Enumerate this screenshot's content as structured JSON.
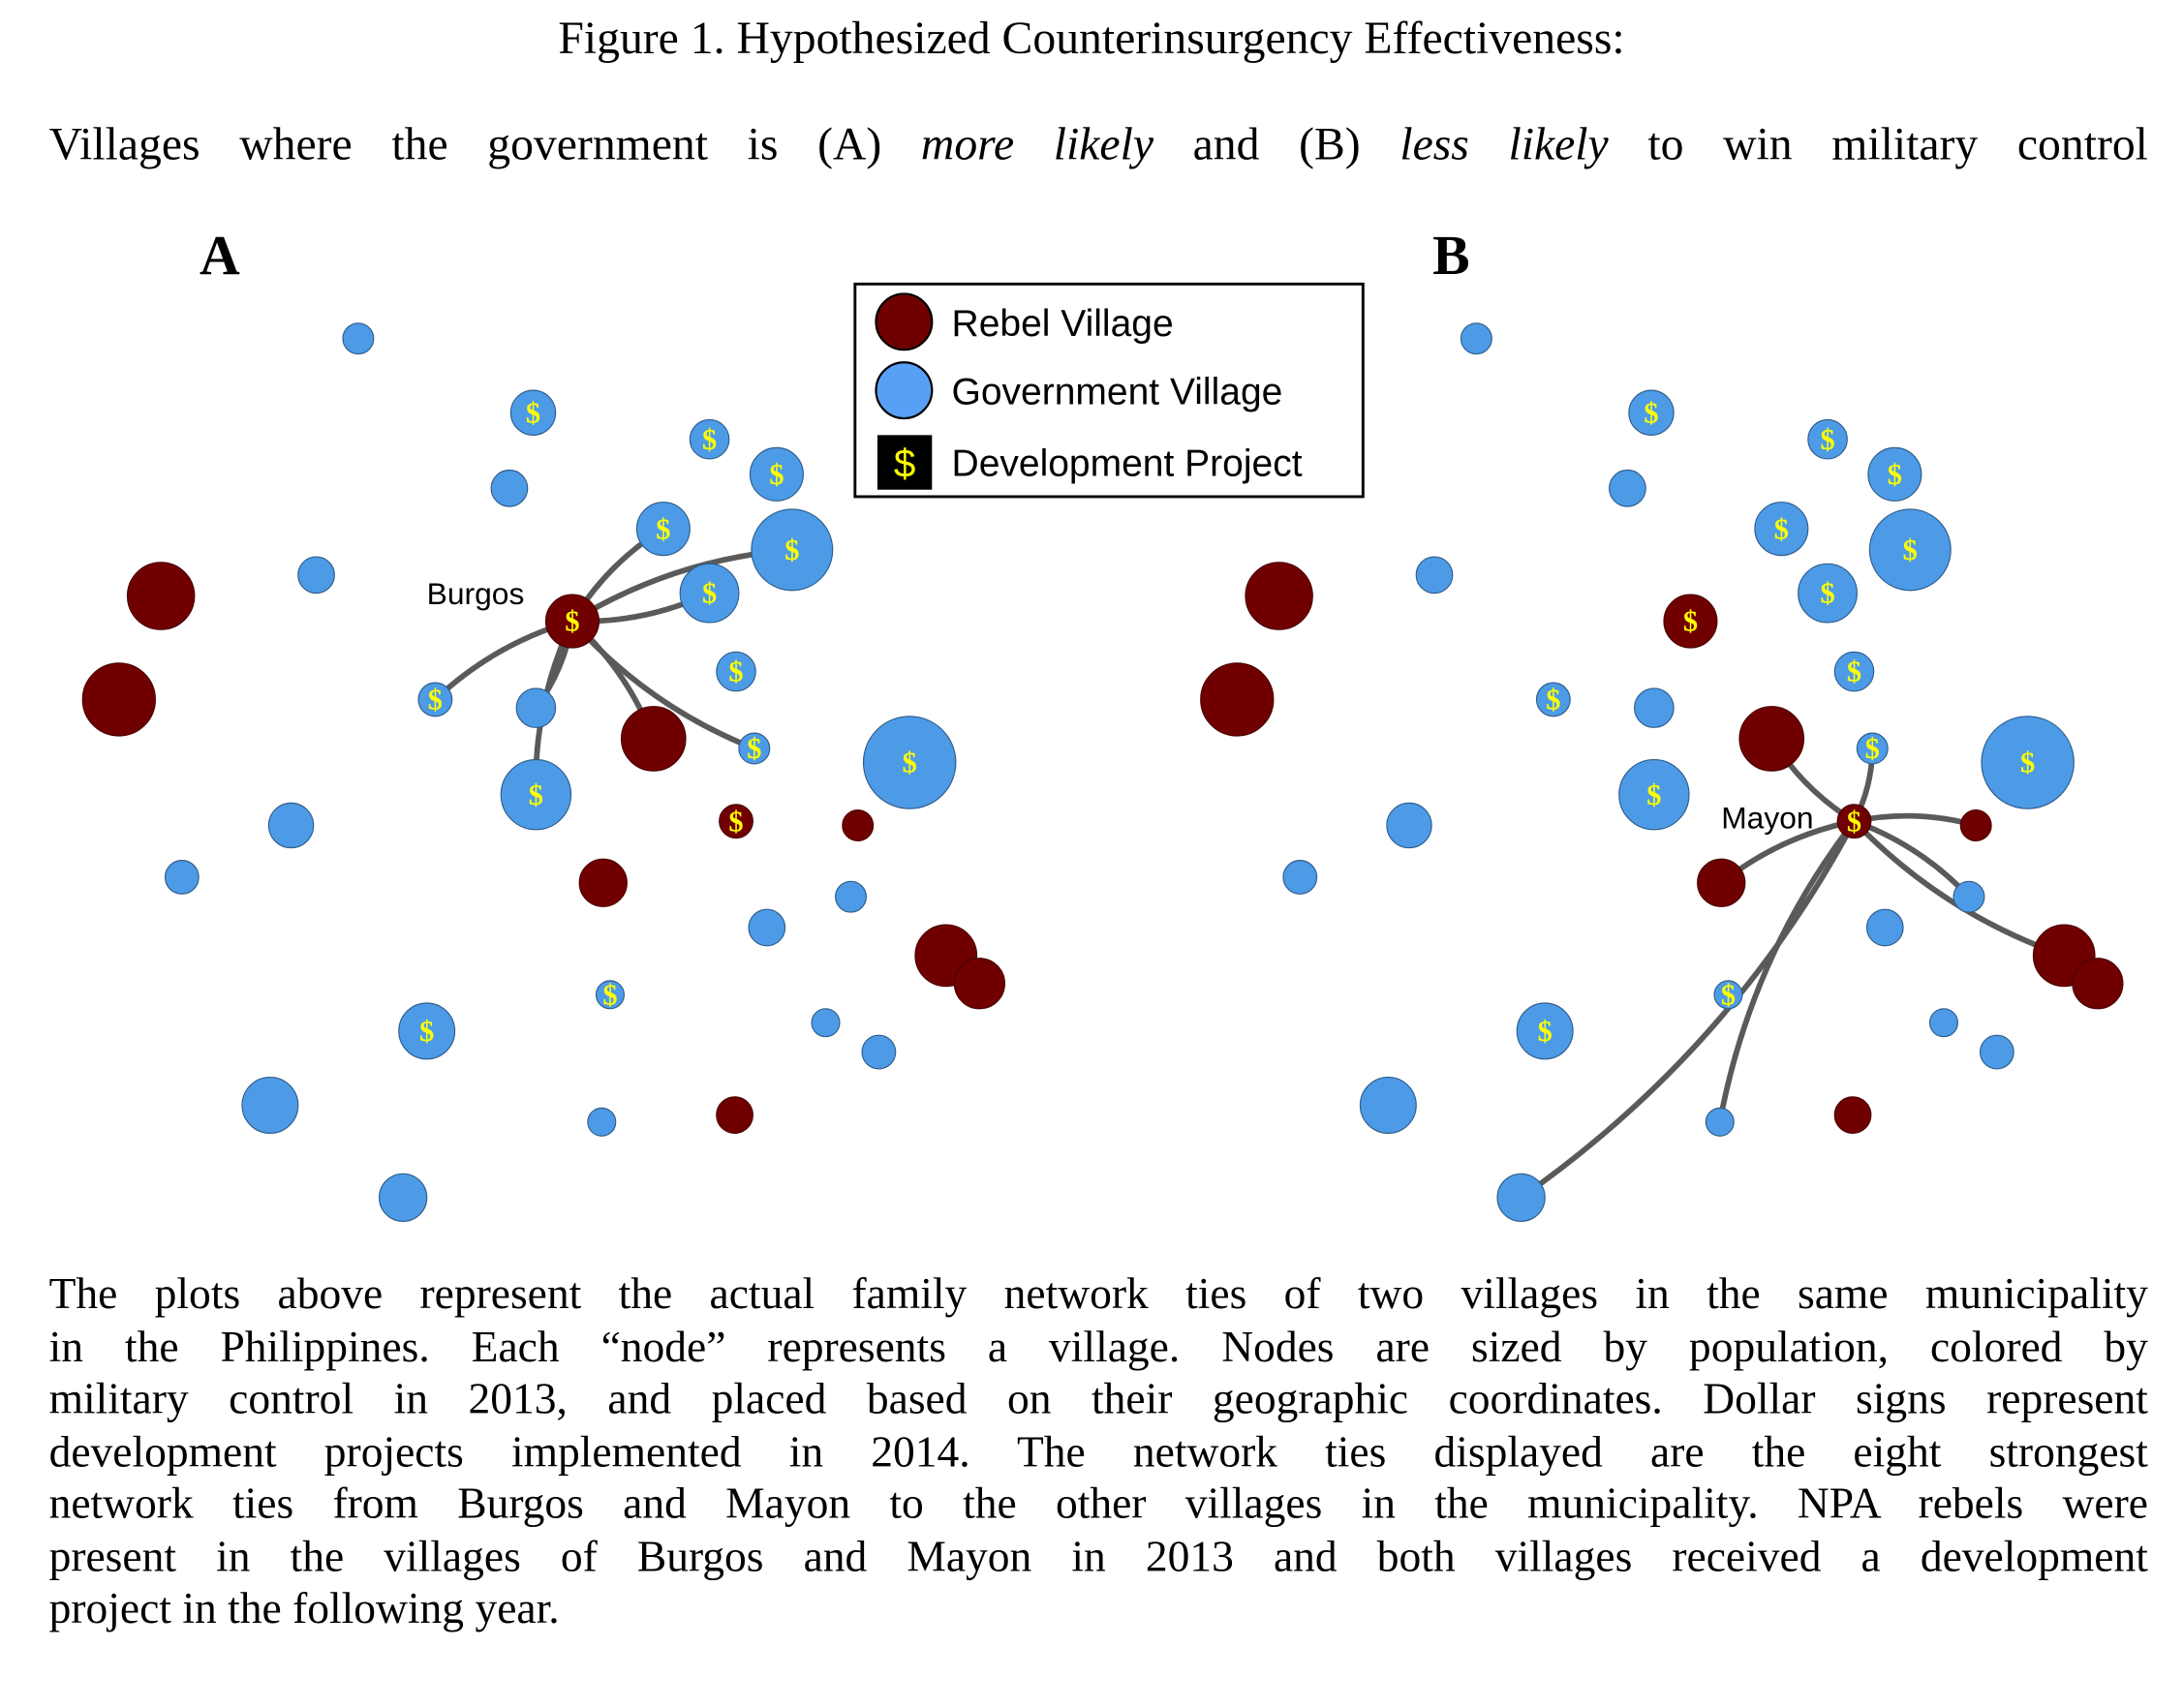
{
  "title": "Figure 1. Hypothesized Counterinsurgency Effectiveness:",
  "subtitle": {
    "p1": "Villages where the government is (A) ",
    "em1": "more likely",
    "p2": " and (B) ",
    "em2": "less likely",
    "p3": " to win military control"
  },
  "colors": {
    "rebel": "#700000",
    "government": "#4d9be6",
    "dollar": "#ffff00",
    "tie": "#5a5a5a"
  },
  "legend": {
    "items": [
      {
        "label": "Rebel Village",
        "icon": "rebel-circle"
      },
      {
        "label": "Government Village",
        "icon": "government-circle"
      },
      {
        "label": "Development Project",
        "icon": "dollar-square",
        "symbol": "$"
      }
    ]
  },
  "dollar_symbol": "$",
  "villages": [
    {
      "type": "government",
      "project": false
    },
    {
      "type": "government",
      "project": true
    },
    {
      "type": "government",
      "project": false
    },
    {
      "type": "government",
      "project": true
    },
    {
      "type": "government",
      "project": true
    },
    {
      "type": "government",
      "project": true
    },
    {
      "type": "government",
      "project": true
    },
    {
      "type": "government",
      "project": false
    },
    {
      "type": "government",
      "project": true
    },
    {
      "type": "government",
      "project": true
    },
    {
      "type": "government",
      "project": true
    },
    {
      "type": "government",
      "project": false
    },
    {
      "type": "government",
      "project": true
    },
    {
      "type": "government",
      "project": true
    },
    {
      "type": "government",
      "project": true
    },
    {
      "type": "government",
      "project": false
    },
    {
      "type": "government",
      "project": false
    },
    {
      "type": "government",
      "project": false
    },
    {
      "type": "government",
      "project": false
    },
    {
      "type": "government",
      "project": true
    },
    {
      "type": "government",
      "project": true
    },
    {
      "type": "government",
      "project": false
    },
    {
      "type": "government",
      "project": false
    },
    {
      "type": "government",
      "project": false
    },
    {
      "type": "government",
      "project": false
    },
    {
      "type": "government",
      "project": false
    },
    {
      "type": "rebel",
      "project": false
    },
    {
      "type": "rebel",
      "project": false
    },
    {
      "type": "rebel",
      "project": true
    },
    {
      "type": "rebel",
      "project": false
    },
    {
      "type": "rebel",
      "project": true
    },
    {
      "type": "rebel",
      "project": false
    },
    {
      "type": "rebel",
      "project": false
    },
    {
      "type": "rebel",
      "project": false
    },
    {
      "type": "rebel",
      "project": false
    },
    {
      "type": "rebel",
      "project": false
    }
  ],
  "panels": [
    {
      "label": "A",
      "hub_name": "Burgos",
      "hub": 28,
      "ties": [
        5,
        8,
        6,
        10,
        11,
        13,
        29,
        12
      ]
    },
    {
      "label": "B",
      "hub_name": "Mayon",
      "hub": 30,
      "ties": [
        29,
        12,
        31,
        32,
        17,
        33,
        25,
        24
      ]
    }
  ],
  "caption_lines": [
    "The plots above represent the actual family network ties of two villages in the same municipality",
    "in the Philippines.  Each “node” represents a village.  Nodes are sized by population, colored by",
    "military control in 2013, and placed based on their geographic coordinates. Dollar signs represent",
    "development projects implemented in 2014.  The network ties displayed are the eight strongest",
    "network ties from Burgos and Mayon to the other villages in the municipality.  NPA rebels were",
    "present in the villages of Burgos and Mayon in 2013 and both villages received a development",
    "project in the following year."
  ]
}
